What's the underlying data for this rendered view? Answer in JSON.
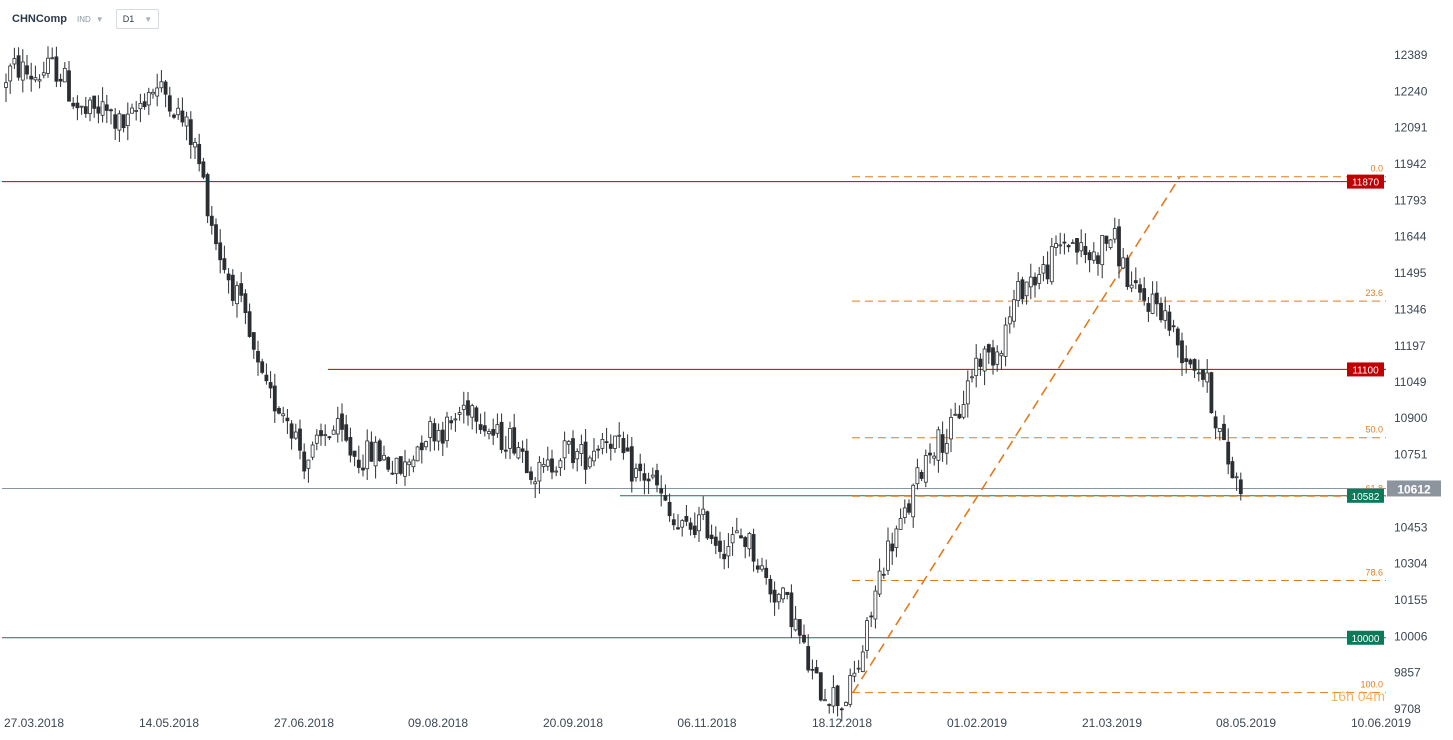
{
  "toolbar": {
    "symbol": "CHNComp",
    "exchange": "IND",
    "timeframe": "D1"
  },
  "chart_data": {
    "type": "candlestick",
    "y_ticks": [
      12389,
      12240,
      12091,
      11942,
      11793,
      11644,
      11495,
      11346,
      11197,
      11049,
      10900,
      10751,
      10453,
      10304,
      10155,
      10006,
      9857,
      9708
    ],
    "x_ticks": [
      "27.03.2018",
      "14.05.2018",
      "27.06.2018",
      "09.08.2018",
      "20.09.2018",
      "06.11.2018",
      "18.12.2018",
      "01.02.2019",
      "21.03.2019",
      "08.05.2019",
      "10.06.2019"
    ],
    "ylim": [
      9700,
      12500
    ],
    "current_price": 10612,
    "horizontal_levels": [
      {
        "value": 11870,
        "label": "11870",
        "color": "#c00000"
      },
      {
        "value": 11100,
        "label": "11100",
        "color": "#c00000"
      },
      {
        "value": 10582,
        "label": "10582",
        "color": "#0a7a5a"
      },
      {
        "value": 10000,
        "label": "10000",
        "color": "#0a7a5a"
      }
    ],
    "fibonacci": {
      "color": "#e07b1f",
      "levels": [
        {
          "ratio": "0.0",
          "value": 11890
        },
        {
          "ratio": "23.6",
          "value": 11380
        },
        {
          "ratio": "50.0",
          "value": 10820
        },
        {
          "ratio": "61.8",
          "value": 10580
        },
        {
          "ratio": "78.6",
          "value": 10235
        },
        {
          "ratio": "100.0",
          "value": 9775
        }
      ]
    },
    "countdown": "16h 04m",
    "series": [
      {
        "kind": "anchor",
        "date": "27.03.2018",
        "close": 12250
      },
      {
        "kind": "anchor",
        "date": "14.05.2018",
        "close": 12180
      },
      {
        "kind": "anchor",
        "date": "27.06.2018",
        "close": 10700
      },
      {
        "kind": "anchor",
        "date": "09.08.2018",
        "close": 10850
      },
      {
        "kind": "anchor",
        "date": "20.09.2018",
        "close": 10780
      },
      {
        "kind": "anchor",
        "date": "06.11.2018",
        "close": 10500
      },
      {
        "kind": "anchor",
        "date": "18.12.2018",
        "close": 9780
      },
      {
        "kind": "anchor",
        "date": "01.02.2019",
        "close": 11200
      },
      {
        "kind": "anchor",
        "date": "21.03.2019",
        "close": 11700
      },
      {
        "kind": "anchor",
        "date": "08.05.2019",
        "close": 10612
      }
    ]
  }
}
